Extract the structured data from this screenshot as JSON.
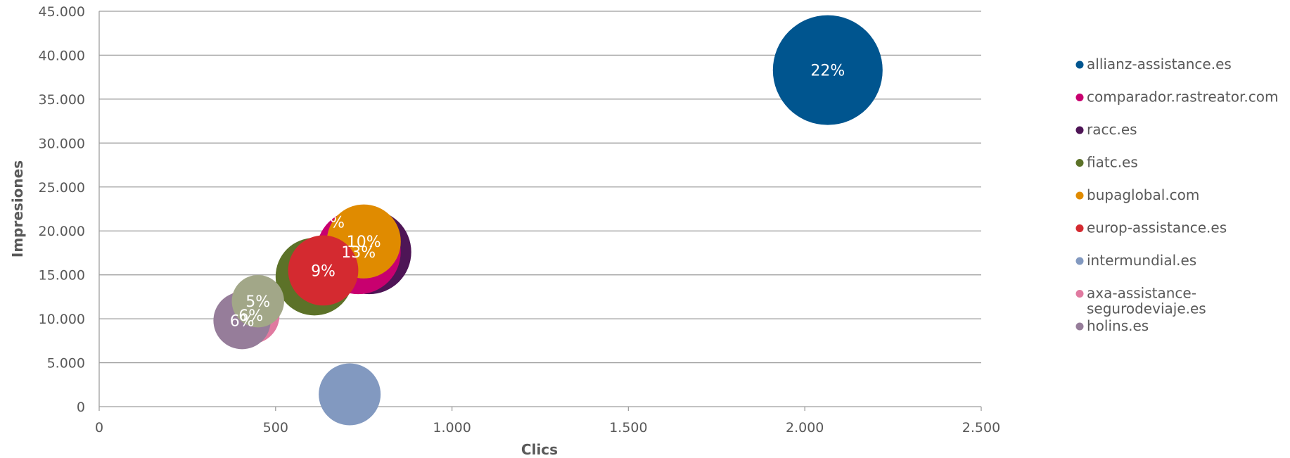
{
  "chart_data": {
    "type": "bubble",
    "title": "",
    "xlabel": "Clics",
    "ylabel": "Impresiones",
    "xlim": [
      0,
      2500
    ],
    "ylim": [
      0,
      45000
    ],
    "x_ticks": [
      "0",
      "500",
      "1.000",
      "1.500",
      "2.000",
      "2.500"
    ],
    "y_ticks": [
      "0",
      "5.000",
      "10.000",
      "15.000",
      "20.000",
      "25.000",
      "30.000",
      "35.000",
      "40.000",
      "45.000"
    ],
    "grid": "horizontal",
    "legend_position": "right",
    "series": [
      {
        "name": "allianz-assistance.es",
        "x": 2065,
        "y": 38300,
        "share": 22,
        "label": "22%",
        "color": "#00558F"
      },
      {
        "name": "comparador.rastreator.com",
        "x": 735,
        "y": 17600,
        "share": 13,
        "label": "13%",
        "color": "#C8006F"
      },
      {
        "name": "racc.es",
        "x": 765,
        "y": 17600,
        "share": 13,
        "label": "",
        "color": "#4E1556"
      },
      {
        "name": "fiatc.es",
        "x": 610,
        "y": 14800,
        "share": 11,
        "label": "",
        "color": "#5C7228"
      },
      {
        "name": "bupaglobal.com",
        "x": 750,
        "y": 18800,
        "share": 10,
        "label": "10%",
        "color": "#E08B00"
      },
      {
        "name": "europ-assistance.es",
        "x": 635,
        "y": 15500,
        "share": 9,
        "label": "9%",
        "color": "#D42A30"
      },
      {
        "name": "intermundial.es",
        "x": 710,
        "y": 1400,
        "share": 7,
        "label": "",
        "color": "#8299C0"
      },
      {
        "name": "axa-assistance-segurodeviaje.es",
        "x": 430,
        "y": 10400,
        "share": 6,
        "label": "6%",
        "color": "#E07AA0"
      },
      {
        "name": "holins.es",
        "x": 405,
        "y": 9800,
        "share": 6,
        "label": "6%",
        "color": "#967D9A"
      },
      {
        "name": "",
        "x": 450,
        "y": 12000,
        "share": 5,
        "label": "5%",
        "color": "#A2A788"
      }
    ],
    "clipped_labels": [
      {
        "text": "%",
        "x": 675,
        "y": 21000
      }
    ]
  }
}
